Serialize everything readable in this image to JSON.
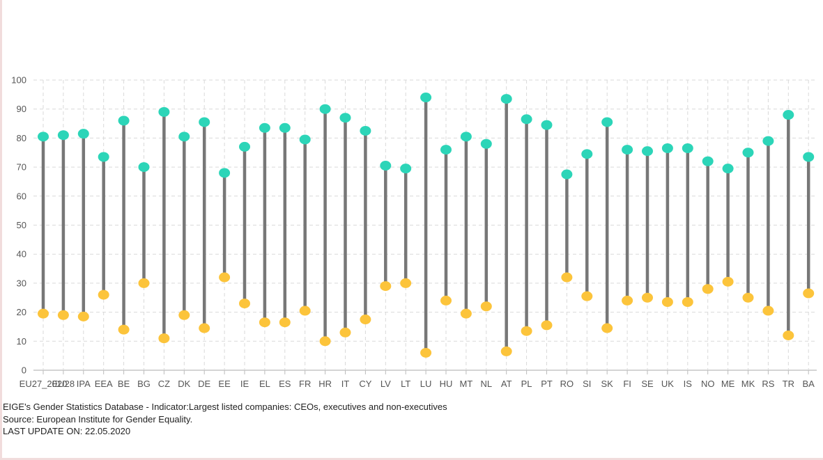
{
  "chart_data": {
    "type": "dumbbell",
    "categories": [
      "EU27_2020",
      "EU28",
      "IPA",
      "EEA",
      "BE",
      "BG",
      "CZ",
      "DK",
      "DE",
      "EE",
      "IE",
      "EL",
      "ES",
      "FR",
      "HR",
      "IT",
      "CY",
      "LV",
      "LT",
      "LU",
      "HU",
      "MT",
      "NL",
      "AT",
      "PL",
      "PT",
      "RO",
      "SI",
      "SK",
      "FI",
      "SE",
      "UK",
      "IS",
      "NO",
      "ME",
      "MK",
      "RS",
      "TR",
      "BA"
    ],
    "series": [
      {
        "values": [
          80.5,
          81,
          81.5,
          73.5,
          86,
          70,
          89,
          80.5,
          85.5,
          68,
          77,
          83.5,
          83.5,
          79.5,
          90,
          87,
          82.5,
          70.5,
          69.5,
          94,
          76,
          80.5,
          78,
          93.5,
          86.5,
          84.5,
          67.5,
          74.5,
          85.5,
          76,
          75.5,
          76.5,
          76.5,
          72,
          69.5,
          75,
          79,
          88,
          73.5
        ],
        "color": "#2cd5b8"
      },
      {
        "values": [
          19.5,
          19,
          18.5,
          26,
          14,
          30,
          11,
          19,
          14.5,
          32,
          23,
          16.5,
          16.5,
          20.5,
          10,
          13,
          17.5,
          29,
          30,
          6,
          24,
          19.5,
          22,
          6.5,
          13.5,
          15.5,
          32,
          25.5,
          14.5,
          24,
          25,
          23.5,
          23.5,
          28,
          30.5,
          25,
          20.5,
          12,
          26.5
        ],
        "color": "#fcc43b"
      }
    ],
    "yticks": [
      0,
      10,
      20,
      30,
      40,
      50,
      60,
      70,
      80,
      90,
      100
    ],
    "ylim": [
      0,
      100
    ],
    "grid": true
  },
  "footer": {
    "line1": "EIGE's Gender Statistics Database - Indicator:Largest listed companies: CEOs, executives and non-executives",
    "line2": "Source: European Institute for Gender Equality.",
    "line3": "LAST UPDATE ON: 22.05.2020"
  },
  "colors": {
    "connector": "#777777",
    "grid": "#d9d9d9",
    "tick_text": "#555555",
    "axis": "#bbbbbb"
  }
}
